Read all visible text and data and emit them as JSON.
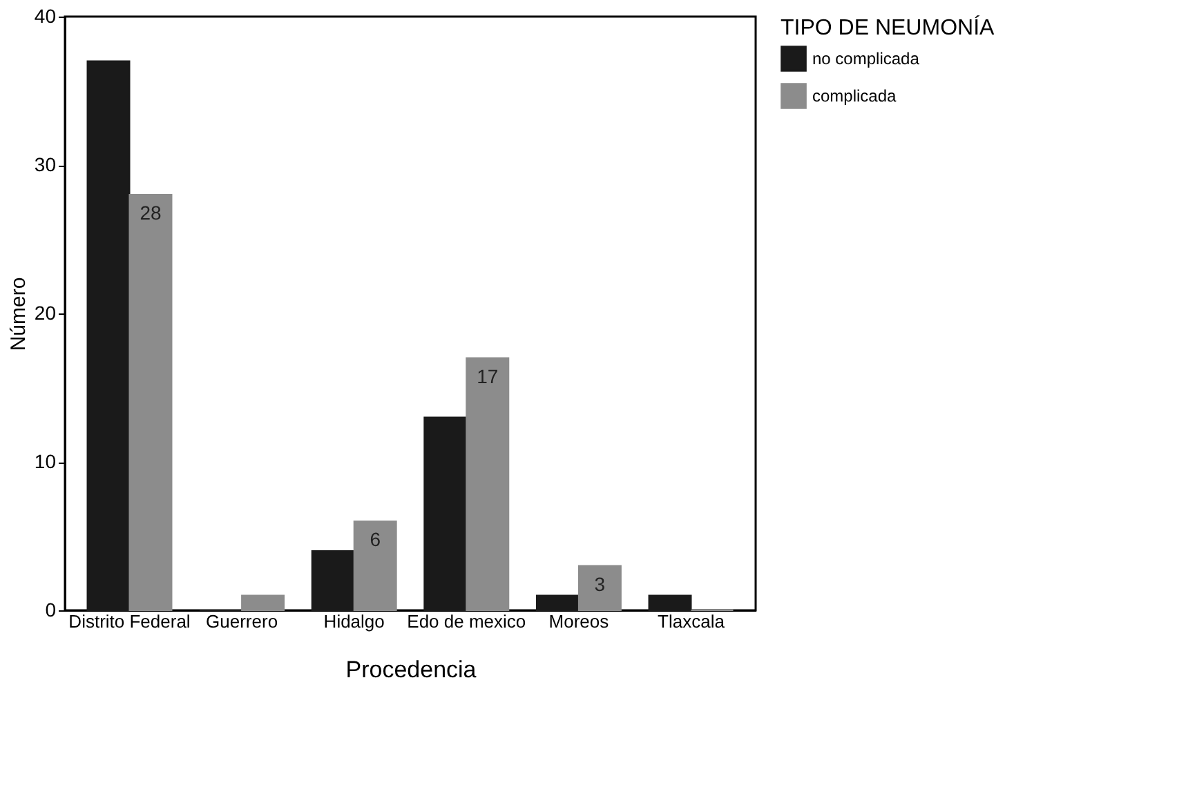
{
  "chart_data": {
    "type": "bar",
    "xlabel": "Procedencia",
    "ylabel": "Número",
    "legend_title": "TIPO DE NEUMONÍA",
    "categories": [
      "Distrito Federal",
      "Guerrero",
      "Hidalgo",
      "Edo de mexico",
      "Moreos",
      "Tlaxcala"
    ],
    "series": [
      {
        "name": "no complicada",
        "color": "#1a1a1a",
        "values": [
          37,
          0,
          4,
          13,
          1,
          1
        ],
        "value_labels": [
          null,
          null,
          null,
          null,
          null,
          null
        ]
      },
      {
        "name": "complicada",
        "color": "#8c8c8c",
        "values": [
          28,
          1,
          6,
          17,
          3,
          0
        ],
        "value_labels": [
          "28",
          null,
          "6",
          "17",
          "3",
          null
        ]
      }
    ],
    "ylim": [
      0,
      40
    ],
    "yticks": [
      0,
      10,
      20,
      30,
      40
    ],
    "grid": false,
    "legend": "right"
  }
}
